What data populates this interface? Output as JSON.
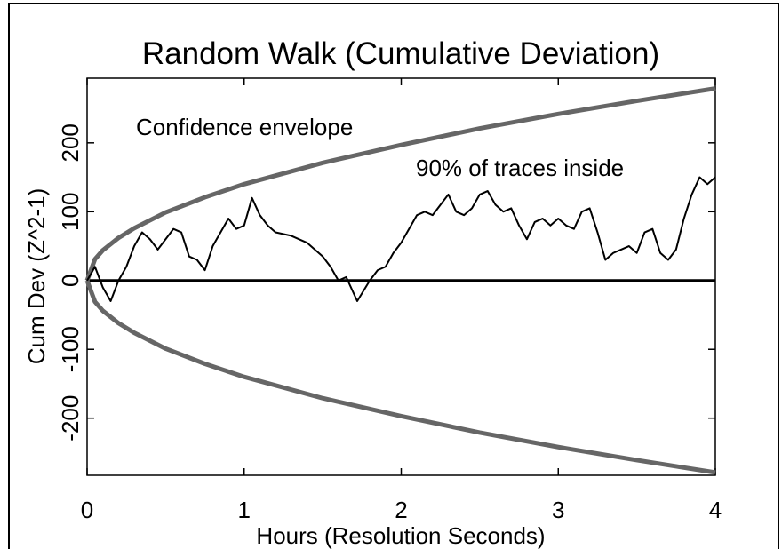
{
  "chart_data": {
    "type": "line",
    "title": "Random Walk (Cumulative Deviation)",
    "x_label": "Hours (Resolution Seconds)",
    "y_label": "Cum Dev (Z^2-1)",
    "annotations": [
      "Confidence envelope",
      "90% of traces inside"
    ],
    "xlim": [
      0,
      4
    ],
    "ylim": [
      -283,
      294
    ],
    "xticks": [
      0,
      1,
      2,
      3,
      4
    ],
    "yticks": [
      -200,
      -100,
      0,
      100,
      200
    ],
    "hlines": [
      0
    ],
    "series": [
      {
        "color": "#666666",
        "x": [
          0,
          0.05,
          0.1,
          0.2,
          0.3,
          0.5,
          0.75,
          1,
          1.5,
          2,
          2.5,
          3,
          3.5,
          4
        ],
        "values": [
          0,
          31,
          44,
          62,
          76,
          99,
          121,
          140,
          171,
          197,
          221,
          242,
          261,
          279
        ]
      },
      {
        "color": "#666666",
        "x": [
          0,
          0.05,
          0.1,
          0.2,
          0.3,
          0.5,
          0.75,
          1,
          1.5,
          2,
          2.5,
          3,
          3.5,
          4
        ],
        "values": [
          0,
          -31,
          -44,
          -62,
          -76,
          -99,
          -121,
          -140,
          -171,
          -197,
          -221,
          -242,
          -261,
          -279
        ]
      },
      {
        "color": "#000000",
        "x": [
          0,
          0.05,
          0.1,
          0.15,
          0.2,
          0.25,
          0.3,
          0.35,
          0.4,
          0.45,
          0.5,
          0.55,
          0.6,
          0.65,
          0.7,
          0.75,
          0.8,
          0.85,
          0.9,
          0.95,
          1,
          1.05,
          1.1,
          1.15,
          1.2,
          1.3,
          1.4,
          1.5,
          1.55,
          1.6,
          1.65,
          1.7,
          1.72,
          1.8,
          1.85,
          1.9,
          1.95,
          2,
          2.05,
          2.1,
          2.15,
          2.2,
          2.25,
          2.3,
          2.35,
          2.4,
          2.45,
          2.5,
          2.55,
          2.6,
          2.65,
          2.7,
          2.75,
          2.8,
          2.85,
          2.9,
          2.95,
          3,
          3.05,
          3.1,
          3.15,
          3.2,
          3.25,
          3.3,
          3.35,
          3.4,
          3.45,
          3.5,
          3.55,
          3.6,
          3.65,
          3.7,
          3.75,
          3.8,
          3.85,
          3.9,
          3.95,
          4
        ],
        "values": [
          0,
          20,
          -10,
          -30,
          0,
          20,
          50,
          70,
          60,
          45,
          60,
          75,
          70,
          35,
          30,
          15,
          50,
          70,
          90,
          75,
          80,
          120,
          95,
          80,
          70,
          65,
          55,
          35,
          20,
          0,
          5,
          -20,
          -30,
          0,
          15,
          20,
          40,
          55,
          75,
          95,
          100,
          95,
          110,
          125,
          100,
          95,
          105,
          125,
          130,
          110,
          100,
          105,
          80,
          60,
          85,
          90,
          80,
          90,
          80,
          75,
          100,
          105,
          70,
          30,
          40,
          45,
          50,
          40,
          70,
          75,
          40,
          30,
          45,
          90,
          125,
          150,
          140,
          150
        ]
      }
    ]
  }
}
